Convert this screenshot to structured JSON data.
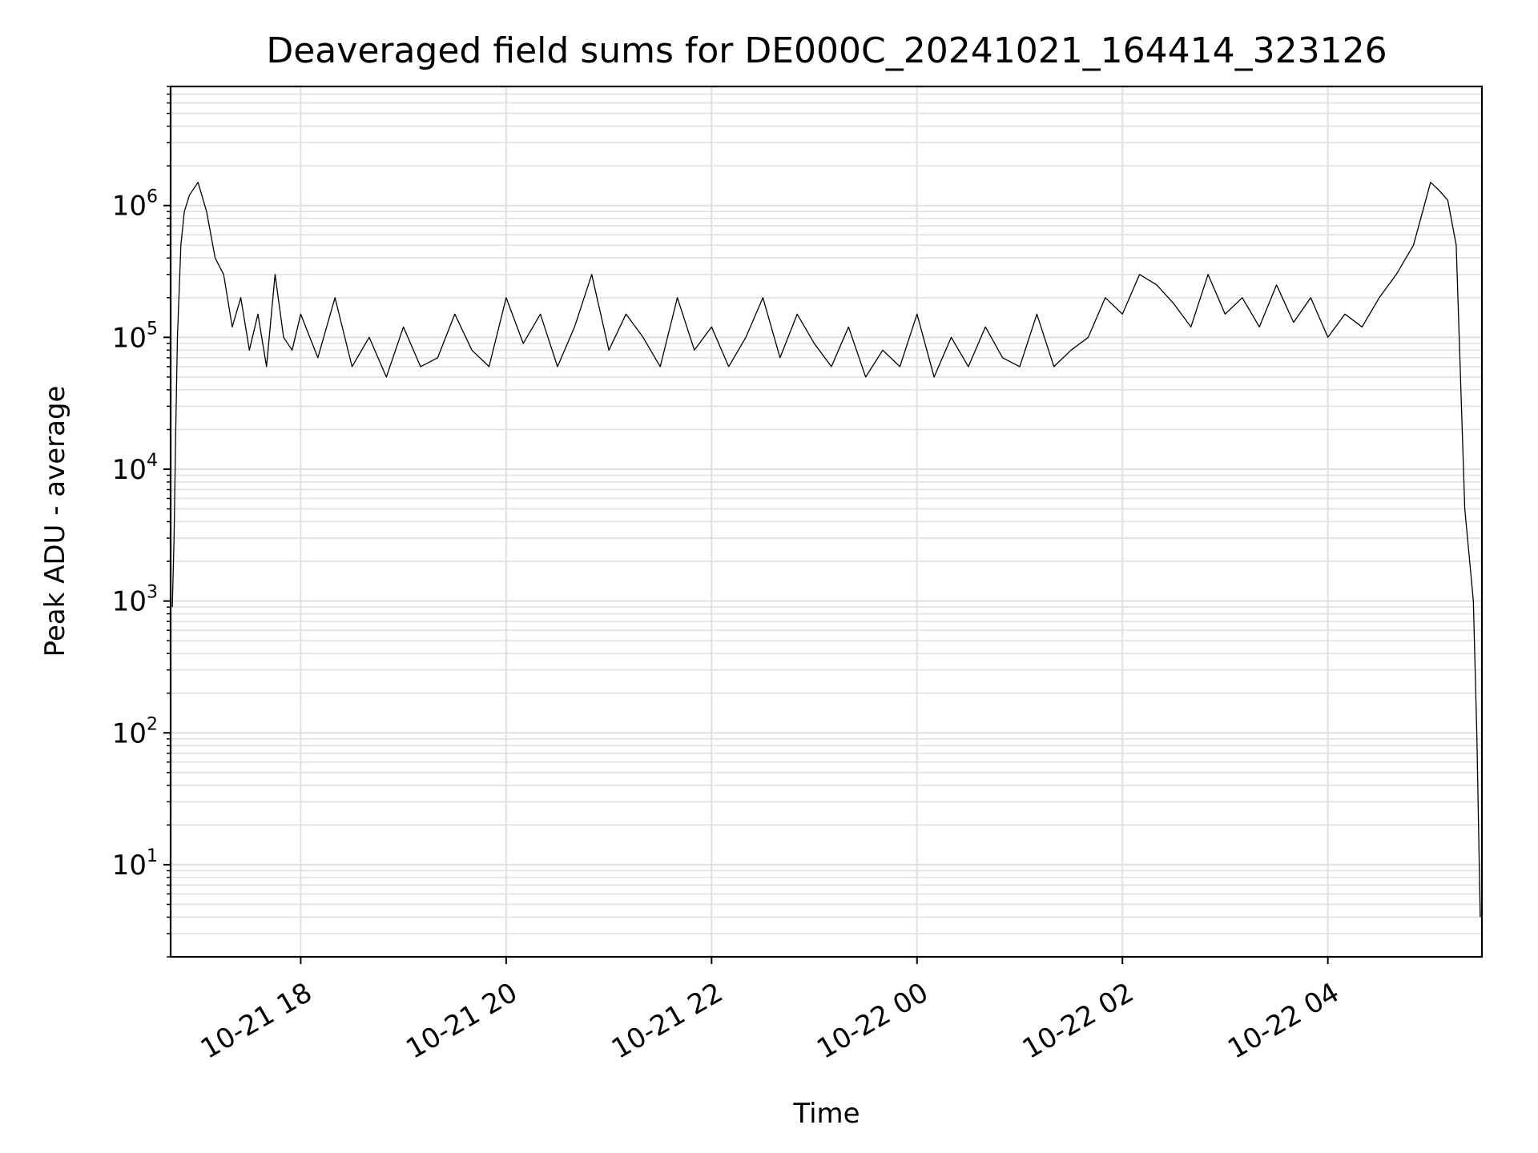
{
  "chart_data": {
    "type": "line",
    "title": "Deaveraged field sums for DE000C_20241021_164414_323126",
    "xlabel": "Time",
    "ylabel": "Peak ADU - average",
    "yscale": "log",
    "ylim": [
      2,
      8000000
    ],
    "xlim": [
      "2024-10-21 16:44",
      "2024-10-22 05:30"
    ],
    "grid": true,
    "legend": "none",
    "colors": {
      "line": "#000000",
      "grid": "#e0e0e0",
      "axes": "#000000"
    },
    "x_ticks": [
      {
        "time": "2024-10-21 18:00",
        "label": "10-21 18"
      },
      {
        "time": "2024-10-21 20:00",
        "label": "10-21 20"
      },
      {
        "time": "2024-10-21 22:00",
        "label": "10-21 22"
      },
      {
        "time": "2024-10-22 00:00",
        "label": "10-22 00"
      },
      {
        "time": "2024-10-22 02:00",
        "label": "10-22 02"
      },
      {
        "time": "2024-10-22 04:00",
        "label": "10-22 04"
      }
    ],
    "y_ticks": [
      {
        "value": 10,
        "base": "10",
        "exp": "1"
      },
      {
        "value": 100,
        "base": "10",
        "exp": "2"
      },
      {
        "value": 1000,
        "base": "10",
        "exp": "3"
      },
      {
        "value": 10000,
        "base": "10",
        "exp": "4"
      },
      {
        "value": 100000,
        "base": "10",
        "exp": "5"
      },
      {
        "value": 1000000,
        "base": "10",
        "exp": "6"
      }
    ],
    "series": [
      {
        "x": [
          "2024-10-21 16:45",
          "2024-10-21 16:46",
          "2024-10-21 16:47",
          "2024-10-21 16:48",
          "2024-10-21 16:50",
          "2024-10-21 16:52",
          "2024-10-21 16:55",
          "2024-10-21 17:00",
          "2024-10-21 17:05",
          "2024-10-21 17:10",
          "2024-10-21 17:15",
          "2024-10-21 17:20",
          "2024-10-21 17:25",
          "2024-10-21 17:30",
          "2024-10-21 17:35",
          "2024-10-21 17:40",
          "2024-10-21 17:45",
          "2024-10-21 17:50",
          "2024-10-21 17:55",
          "2024-10-21 18:00",
          "2024-10-21 18:10",
          "2024-10-21 18:20",
          "2024-10-21 18:30",
          "2024-10-21 18:40",
          "2024-10-21 18:50",
          "2024-10-21 19:00",
          "2024-10-21 19:10",
          "2024-10-21 19:20",
          "2024-10-21 19:30",
          "2024-10-21 19:40",
          "2024-10-21 19:50",
          "2024-10-21 20:00",
          "2024-10-21 20:10",
          "2024-10-21 20:20",
          "2024-10-21 20:30",
          "2024-10-21 20:40",
          "2024-10-21 20:50",
          "2024-10-21 21:00",
          "2024-10-21 21:10",
          "2024-10-21 21:20",
          "2024-10-21 21:30",
          "2024-10-21 21:40",
          "2024-10-21 21:50",
          "2024-10-21 22:00",
          "2024-10-21 22:10",
          "2024-10-21 22:20",
          "2024-10-21 22:30",
          "2024-10-21 22:40",
          "2024-10-21 22:50",
          "2024-10-21 23:00",
          "2024-10-21 23:10",
          "2024-10-21 23:20",
          "2024-10-21 23:30",
          "2024-10-21 23:40",
          "2024-10-21 23:50",
          "2024-10-22 00:00",
          "2024-10-22 00:10",
          "2024-10-22 00:20",
          "2024-10-22 00:30",
          "2024-10-22 00:40",
          "2024-10-22 00:50",
          "2024-10-22 01:00",
          "2024-10-22 01:10",
          "2024-10-22 01:20",
          "2024-10-22 01:30",
          "2024-10-22 01:40",
          "2024-10-22 01:50",
          "2024-10-22 02:00",
          "2024-10-22 02:10",
          "2024-10-22 02:20",
          "2024-10-22 02:30",
          "2024-10-22 02:40",
          "2024-10-22 02:50",
          "2024-10-22 03:00",
          "2024-10-22 03:10",
          "2024-10-22 03:20",
          "2024-10-22 03:30",
          "2024-10-22 03:40",
          "2024-10-22 03:50",
          "2024-10-22 04:00",
          "2024-10-22 04:10",
          "2024-10-22 04:20",
          "2024-10-22 04:30",
          "2024-10-22 04:40",
          "2024-10-22 04:50",
          "2024-10-22 05:00",
          "2024-10-22 05:05",
          "2024-10-22 05:10",
          "2024-10-22 05:15",
          "2024-10-22 05:20",
          "2024-10-22 05:25",
          "2024-10-22 05:27",
          "2024-10-22 05:29"
        ],
        "y": [
          900,
          3000,
          20000,
          100000,
          500000,
          900000,
          1200000,
          1500000,
          900000,
          400000,
          300000,
          120000,
          200000,
          80000,
          150000,
          60000,
          300000,
          100000,
          80000,
          150000,
          70000,
          200000,
          60000,
          100000,
          50000,
          120000,
          60000,
          70000,
          150000,
          80000,
          60000,
          200000,
          90000,
          150000,
          60000,
          120000,
          300000,
          80000,
          150000,
          100000,
          60000,
          200000,
          80000,
          120000,
          60000,
          100000,
          200000,
          70000,
          150000,
          90000,
          60000,
          120000,
          50000,
          80000,
          60000,
          150000,
          50000,
          100000,
          60000,
          120000,
          70000,
          60000,
          150000,
          60000,
          80000,
          100000,
          200000,
          150000,
          300000,
          250000,
          180000,
          120000,
          300000,
          150000,
          200000,
          120000,
          250000,
          130000,
          200000,
          100000,
          150000,
          120000,
          200000,
          300000,
          500000,
          1500000,
          1300000,
          1100000,
          500000,
          5000,
          1000,
          100,
          4
        ]
      }
    ]
  }
}
